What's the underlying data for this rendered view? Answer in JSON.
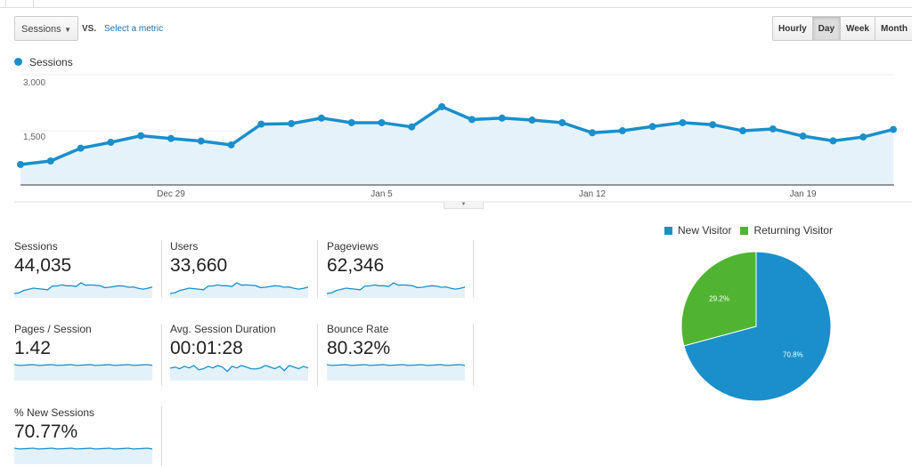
{
  "controls": {
    "metric_dropdown": "Sessions",
    "vs_label": "VS.",
    "select_metric_link": "Select a metric",
    "granularity": [
      {
        "label": "Hourly",
        "active": false
      },
      {
        "label": "Day",
        "active": true
      },
      {
        "label": "Week",
        "active": false
      },
      {
        "label": "Month",
        "active": false
      }
    ]
  },
  "chart_data": [
    {
      "type": "area",
      "series": [
        {
          "name": "Sessions",
          "color": "#1a8fcc",
          "values": [
            557,
            653,
            1000,
            1160,
            1340,
            1265,
            1195,
            1090,
            1655,
            1670,
            1820,
            1695,
            1695,
            1580,
            2130,
            1780,
            1820,
            1765,
            1695,
            1420,
            1475,
            1590,
            1695,
            1640,
            1475,
            1525,
            1330,
            1200,
            1305,
            1510
          ]
        }
      ],
      "x_start": "Dec 24",
      "x_ticks": [
        {
          "label": "Dec 29",
          "index": 5
        },
        {
          "label": "Jan 5",
          "index": 12
        },
        {
          "label": "Jan 12",
          "index": 19
        },
        {
          "label": "Jan 19",
          "index": 26
        }
      ],
      "y_ticks": [
        "1,500",
        "3,000"
      ],
      "y_tick_values": [
        1500,
        3000
      ],
      "ylim": [
        0,
        3000
      ],
      "grid": true,
      "legend": "top-left"
    },
    {
      "type": "pie",
      "legend": "top",
      "slices": [
        {
          "name": "New Visitor",
          "value": 70.8,
          "label": "70.8%",
          "color": "#1a8fcc"
        },
        {
          "name": "Returning Visitor",
          "value": 29.2,
          "label": "29.2%",
          "color": "#50b432"
        }
      ]
    }
  ],
  "metrics": [
    {
      "label": "Sessions",
      "value": "44,035",
      "spark": "sessions"
    },
    {
      "label": "Users",
      "value": "33,660",
      "spark": "sessions"
    },
    {
      "label": "Pageviews",
      "value": "62,346",
      "spark": "sessions"
    },
    {
      "label": "Pages / Session",
      "value": "1.42",
      "spark": "flat"
    },
    {
      "label": "Avg. Session Duration",
      "value": "00:01:28",
      "spark": "noisy"
    },
    {
      "label": "Bounce Rate",
      "value": "80.32%",
      "spark": "flat"
    },
    {
      "label": "% New Sessions",
      "value": "70.77%",
      "spark": "flat"
    }
  ]
}
